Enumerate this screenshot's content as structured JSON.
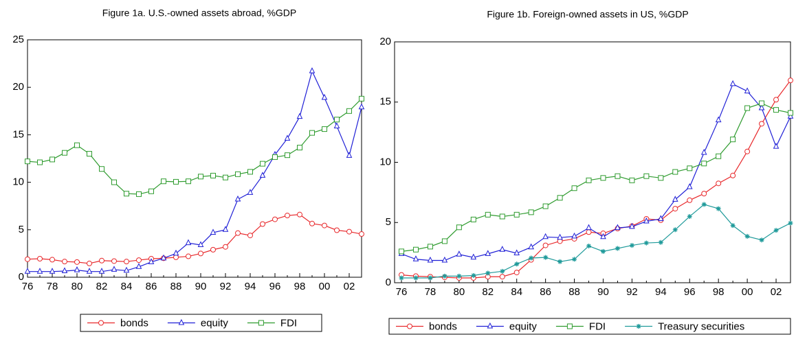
{
  "chart_data": [
    {
      "type": "line",
      "title": "Figure 1a. U.S.-owned assets abroad, %GDP",
      "categories": [
        "76",
        null,
        "78",
        null,
        "80",
        null,
        "82",
        null,
        "84",
        null,
        "86",
        null,
        "88",
        null,
        "90",
        null,
        "92",
        null,
        "94",
        null,
        "96",
        null,
        "98",
        null,
        "00",
        null,
        "02",
        null
      ],
      "ylim": [
        0,
        25
      ],
      "yticks": [
        0,
        5,
        10,
        15,
        20,
        25
      ],
      "series": [
        {
          "name": "bonds",
          "color": "#e8272a",
          "marker": "circle",
          "values": [
            1.9,
            1.95,
            1.85,
            1.65,
            1.6,
            1.45,
            1.75,
            1.7,
            1.65,
            1.8,
            1.95,
            2.0,
            2.1,
            2.2,
            2.5,
            2.9,
            3.2,
            4.65,
            4.4,
            5.6,
            6.1,
            6.5,
            6.6,
            5.65,
            5.45,
            4.95,
            4.8,
            4.55
          ]
        },
        {
          "name": "equity",
          "color": "#1f1fd6",
          "marker": "triangle",
          "values": [
            0.6,
            0.6,
            0.6,
            0.65,
            0.75,
            0.6,
            0.6,
            0.8,
            0.7,
            1.1,
            1.6,
            2.0,
            2.5,
            3.6,
            3.4,
            4.7,
            5.0,
            8.2,
            8.9,
            10.7,
            12.9,
            14.6,
            16.9,
            21.7,
            18.9,
            15.9,
            12.8,
            17.9
          ]
        },
        {
          "name": "FDI",
          "color": "#2e9b2e",
          "marker": "square",
          "values": [
            12.2,
            12.1,
            12.4,
            13.1,
            13.9,
            13.0,
            11.4,
            10.0,
            8.8,
            8.75,
            9.05,
            10.1,
            10.05,
            10.1,
            10.6,
            10.7,
            10.5,
            10.85,
            11.1,
            11.95,
            12.65,
            12.85,
            13.65,
            15.2,
            15.6,
            16.6,
            17.5,
            18.8
          ]
        }
      ]
    },
    {
      "type": "line",
      "title": "Figure 1b. Foreign-owned assets in US, %GDP",
      "categories": [
        "76",
        null,
        "78",
        null,
        "80",
        null,
        "82",
        null,
        "84",
        null,
        "86",
        null,
        "88",
        null,
        "90",
        null,
        "92",
        null,
        "94",
        null,
        "96",
        null,
        "98",
        null,
        "00",
        null,
        "02",
        null
      ],
      "ylim": [
        0,
        20
      ],
      "yticks": [
        0,
        5,
        10,
        15,
        20
      ],
      "series": [
        {
          "name": "bonds",
          "color": "#e8272a",
          "marker": "circle",
          "values": [
            0.65,
            0.55,
            0.5,
            0.45,
            0.4,
            0.4,
            0.5,
            0.5,
            0.85,
            1.9,
            3.1,
            3.45,
            3.65,
            4.2,
            4.1,
            4.5,
            4.7,
            5.3,
            5.2,
            6.15,
            6.85,
            7.4,
            8.25,
            8.9,
            10.9,
            13.2,
            15.2,
            16.8
          ]
        },
        {
          "name": "equity",
          "color": "#1f1fd6",
          "marker": "triangle",
          "values": [
            2.4,
            1.95,
            1.85,
            1.85,
            2.35,
            2.1,
            2.4,
            2.75,
            2.45,
            2.95,
            3.8,
            3.75,
            3.85,
            4.55,
            3.8,
            4.55,
            4.65,
            5.1,
            5.3,
            6.9,
            7.95,
            10.8,
            13.5,
            16.5,
            15.9,
            14.5,
            11.3,
            13.8
          ]
        },
        {
          "name": "FDI",
          "color": "#2e9b2e",
          "marker": "square",
          "values": [
            2.6,
            2.75,
            3.0,
            3.45,
            4.6,
            5.25,
            5.65,
            5.5,
            5.65,
            5.85,
            6.35,
            7.05,
            7.85,
            8.5,
            8.7,
            8.85,
            8.5,
            8.85,
            8.7,
            9.2,
            9.5,
            9.9,
            10.5,
            11.9,
            14.5,
            14.9,
            14.35,
            14.1
          ]
        },
        {
          "name": "Treasury securities",
          "color": "#1f9a9a",
          "marker": "star",
          "values": [
            0.4,
            0.4,
            0.4,
            0.55,
            0.55,
            0.6,
            0.8,
            0.95,
            1.55,
            2.05,
            2.1,
            1.75,
            1.95,
            3.05,
            2.6,
            2.85,
            3.1,
            3.3,
            3.35,
            4.4,
            5.5,
            6.5,
            6.15,
            4.75,
            3.85,
            3.55,
            4.35,
            4.95
          ]
        }
      ]
    }
  ]
}
